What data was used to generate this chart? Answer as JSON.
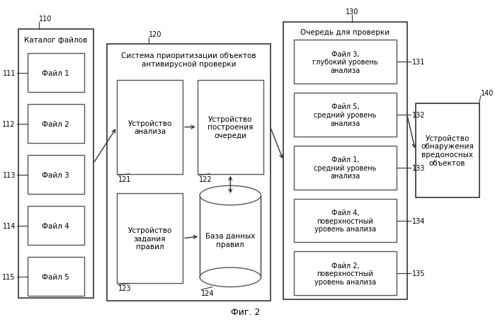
{
  "title": "Фиг. 2",
  "bg_color": "#ffffff",
  "catalog_label": "Каталог файлов",
  "catalog_id": "110",
  "file_boxes": [
    {
      "label": "Файл 1",
      "id": "111"
    },
    {
      "label": "Файл 2",
      "id": "112"
    },
    {
      "label": "Файл 3",
      "id": "113"
    },
    {
      "label": "Файл 4",
      "id": "114"
    },
    {
      "label": "Файл 5",
      "id": "115"
    }
  ],
  "system_label": "Система приоритизации объектов\nантивирусной проверки",
  "system_id": "120",
  "analysis_label": "Устройство\nанализа",
  "analysis_id": "121",
  "queue_dev_label": "Устройство\nпостроения\nочереди",
  "queue_dev_id": "122",
  "rules_label": "Устройство\nзадания\nправил",
  "rules_id": "123",
  "db_label": "База данных\nправил",
  "db_id": "124",
  "queue_label": "Очередь для проверки",
  "queue_id": "130",
  "queue_items": [
    {
      "label": "Файл 3,\nглубокий уровень\nанализа",
      "id": "131"
    },
    {
      "label": "Файл 5,\nсредний уровень\nанализа",
      "id": "132"
    },
    {
      "label": "Файл 1,\nсредний уровень\nанализа",
      "id": "133"
    },
    {
      "label": "Файл 4,\nповерхностный\nуровень анализа",
      "id": "134"
    },
    {
      "label": "Файл 2,\nповерхностный\nуровень анализа",
      "id": "135"
    }
  ],
  "detection_label": "Устройство\nобнаружения\nвредоносных\nобъектов",
  "detection_id": "140"
}
